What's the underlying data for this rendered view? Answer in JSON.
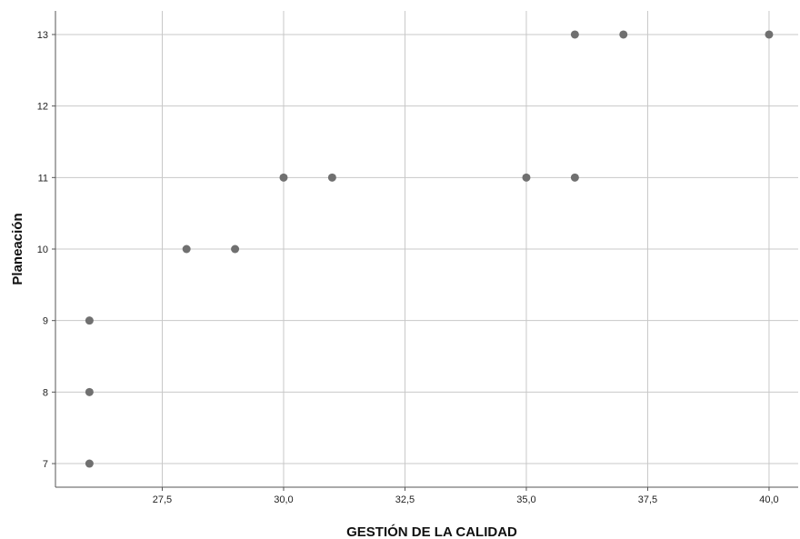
{
  "chart_data": {
    "type": "scatter",
    "title": "",
    "xlabel": "GESTIÓN DE LA CALIDAD",
    "ylabel": "Planeación",
    "xlim": [
      25.3,
      40.6
    ],
    "ylim": [
      6.67,
      13.33
    ],
    "x_ticks": [
      27.5,
      30.0,
      32.5,
      35.0,
      37.5,
      40.0
    ],
    "x_tick_labels": [
      "27,5",
      "30,0",
      "32,5",
      "35,0",
      "37,5",
      "40,0"
    ],
    "y_ticks": [
      7,
      8,
      9,
      10,
      11,
      12,
      13
    ],
    "y_tick_labels": [
      "7",
      "8",
      "9",
      "10",
      "11",
      "12",
      "13"
    ],
    "grid": true,
    "legend": "none",
    "marker_color": "#707070",
    "grid_color": "#c8c8c8",
    "points": [
      {
        "x": 26,
        "y": 7
      },
      {
        "x": 26,
        "y": 8
      },
      {
        "x": 26,
        "y": 9
      },
      {
        "x": 28,
        "y": 10
      },
      {
        "x": 29,
        "y": 10
      },
      {
        "x": 30,
        "y": 11
      },
      {
        "x": 31,
        "y": 11
      },
      {
        "x": 35,
        "y": 11
      },
      {
        "x": 36,
        "y": 11
      },
      {
        "x": 36,
        "y": 13
      },
      {
        "x": 37,
        "y": 13
      },
      {
        "x": 40,
        "y": 13
      }
    ]
  }
}
